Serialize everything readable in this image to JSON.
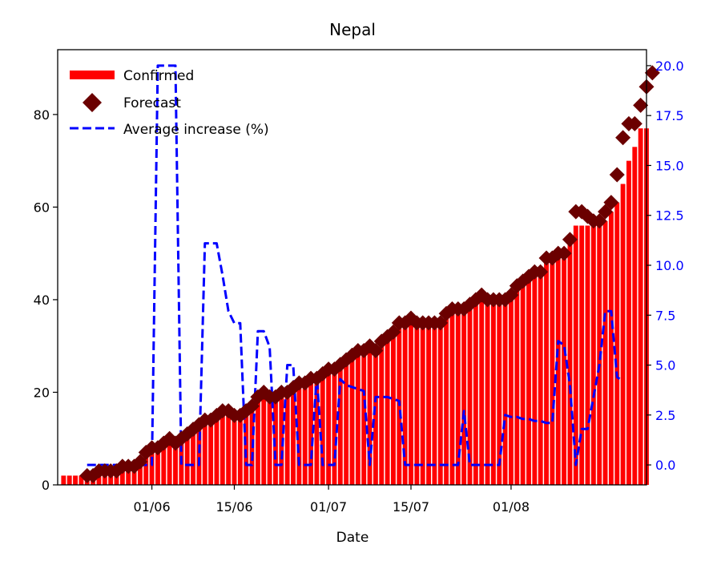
{
  "chart_data": {
    "type": "bar",
    "title": "Nepal",
    "xlabel": "Date",
    "ylabel": "",
    "ylabel_right": "",
    "x_start": "2020-05-17",
    "x_end": "2020-08-20",
    "xlim": [
      "2020-05-16",
      "2020-08-24"
    ],
    "ylim": [
      0,
      94
    ],
    "ylim_right": [
      -1,
      20.8
    ],
    "x_ticks": [
      {
        "date": "2020-06-01",
        "label": "01/06"
      },
      {
        "date": "2020-06-15",
        "label": "15/06"
      },
      {
        "date": "2020-07-01",
        "label": "01/07"
      },
      {
        "date": "2020-07-15",
        "label": "15/07"
      },
      {
        "date": "2020-08-01",
        "label": "01/08"
      }
    ],
    "y_ticks": [
      {
        "value": 0,
        "label": "0"
      },
      {
        "value": 20,
        "label": "20"
      },
      {
        "value": 40,
        "label": "40"
      },
      {
        "value": 60,
        "label": "60"
      },
      {
        "value": 80,
        "label": "80"
      }
    ],
    "y_ticks_right": [
      {
        "value": 0,
        "label": "0.0"
      },
      {
        "value": 2.5,
        "label": "2.5"
      },
      {
        "value": 5,
        "label": "5.0"
      },
      {
        "value": 7.5,
        "label": "7.5"
      },
      {
        "value": 10,
        "label": "10.0"
      },
      {
        "value": 12.5,
        "label": "12.5"
      },
      {
        "value": 15,
        "label": "15.0"
      },
      {
        "value": 17.5,
        "label": "17.5"
      },
      {
        "value": 20,
        "label": "20.0"
      }
    ],
    "legend_position": "upper-left",
    "series": [
      {
        "name": "Confirmed",
        "kind": "bar",
        "color": "#ff0000",
        "axis": "left",
        "values": [
          2,
          2,
          2,
          2,
          3,
          3,
          3,
          3,
          3,
          4,
          4,
          4,
          5,
          6,
          7,
          8,
          8,
          9,
          9,
          9,
          10,
          11,
          12,
          13,
          14,
          15,
          15,
          16,
          16,
          16,
          16,
          17,
          17,
          18,
          19,
          19,
          20,
          20,
          20,
          21,
          22,
          22,
          22,
          23,
          24,
          24,
          25,
          25,
          27,
          28,
          29,
          29,
          30,
          30,
          31,
          32,
          33,
          35,
          35,
          36,
          36,
          35,
          35,
          35,
          35,
          37,
          38,
          38,
          38,
          39,
          40,
          41,
          41,
          40,
          40,
          40,
          41,
          43,
          44,
          45,
          46,
          46,
          49,
          49,
          50,
          50,
          53,
          56,
          56,
          56,
          58,
          57,
          57,
          59,
          61,
          65,
          70,
          73,
          77,
          77
        ]
      },
      {
        "name": "Forecast",
        "kind": "scatter",
        "color": "#6b0000",
        "axis": "left",
        "marker": "diamond",
        "values": [
          null,
          null,
          null,
          null,
          2,
          2,
          3,
          3,
          3,
          3,
          4,
          4,
          4,
          5,
          7,
          8,
          8,
          9,
          10,
          9,
          10,
          11,
          12,
          13,
          14,
          14,
          15,
          16,
          16,
          15,
          15,
          16,
          17,
          19,
          20,
          19,
          19,
          20,
          20,
          21,
          22,
          22,
          23,
          23,
          24,
          25,
          25,
          26,
          27,
          28,
          29,
          29,
          30,
          29,
          31,
          32,
          33,
          35,
          35,
          36,
          35,
          35,
          35,
          35,
          35,
          37,
          38,
          38,
          38,
          39,
          40,
          41,
          40,
          40,
          40,
          40,
          41,
          43,
          44,
          45,
          46,
          46,
          49,
          49,
          50,
          50,
          53,
          59,
          59,
          58,
          57,
          57,
          59,
          61,
          67,
          75,
          78,
          78,
          82,
          86,
          89
        ]
      },
      {
        "name": "Average increase (%)",
        "kind": "line",
        "color": "#0000ff",
        "axis": "right",
        "style": "dashed",
        "x_offset_days": 4,
        "values": [
          0,
          0,
          0,
          0,
          0,
          0,
          0,
          0,
          0,
          0,
          0,
          0,
          20,
          20,
          20,
          20,
          0,
          0,
          0,
          0,
          11.1,
          11.1,
          11.1,
          9.5,
          7.7,
          7.1,
          7.1,
          0,
          0,
          6.7,
          6.7,
          5.9,
          0,
          0,
          5,
          5,
          0,
          0,
          0,
          4.5,
          0,
          0,
          0,
          4.3,
          4,
          3.9,
          3.8,
          3.7,
          0,
          3.4,
          3.4,
          3.4,
          3.3,
          3.2,
          0,
          0,
          0,
          0,
          0,
          0,
          0,
          0,
          0,
          0,
          2.7,
          0,
          0,
          0,
          0,
          0,
          0,
          2.5,
          2.4,
          2.4,
          2.3,
          2.3,
          2.2,
          2.2,
          2.1,
          2.1,
          6.2,
          6,
          4,
          0,
          1.8,
          1.8,
          3.4,
          5,
          7.7,
          7.7,
          4.4,
          4.2
        ]
      }
    ]
  }
}
